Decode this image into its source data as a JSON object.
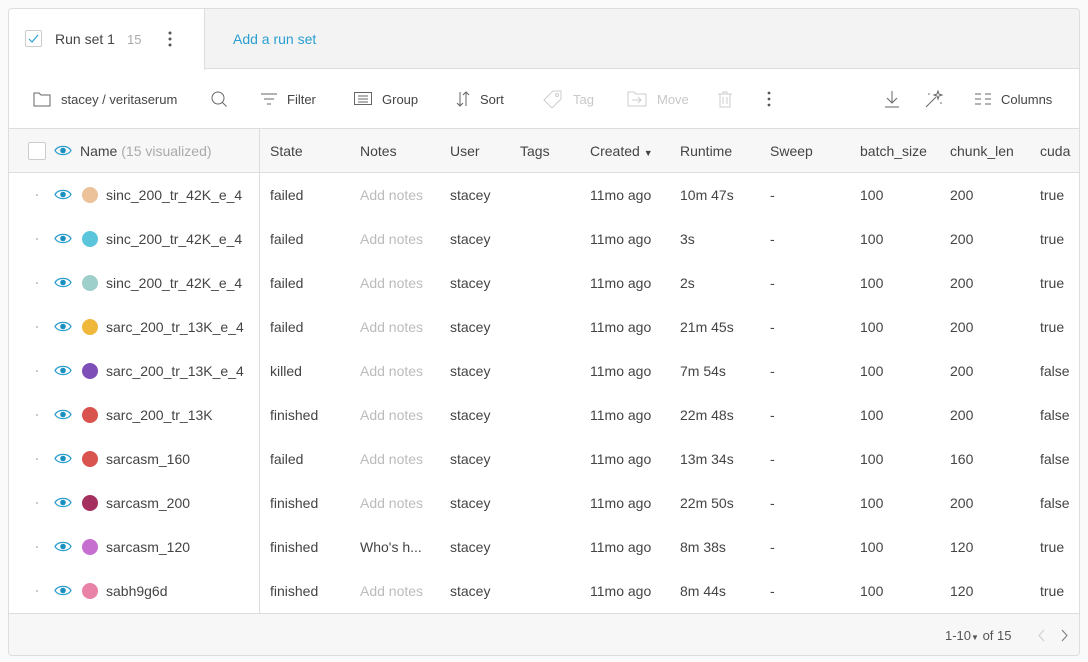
{
  "tabs": {
    "active": {
      "label": "Run set 1",
      "count": "15",
      "checked": true
    },
    "add_label": "Add a run set"
  },
  "toolbar": {
    "project": "stacey / veritaserum",
    "filter": "Filter",
    "group": "Group",
    "sort": "Sort",
    "tag": "Tag",
    "move": "Move",
    "columns": "Columns"
  },
  "table": {
    "columns": {
      "name": "Name",
      "name_note": "(15 visualized)",
      "state": "State",
      "notes": "Notes",
      "user": "User",
      "tags": "Tags",
      "created": "Created",
      "runtime": "Runtime",
      "sweep": "Sweep",
      "batch_size": "batch_size",
      "chunk_len": "chunk_len",
      "cuda": "cuda"
    },
    "rows": [
      {
        "name": "sinc_200_tr_42K_e_4",
        "color": "#ecc29a",
        "state": "failed",
        "notes": "Add notes",
        "user": "stacey",
        "created": "11mo ago",
        "runtime": "10m 47s",
        "sweep": "-",
        "batch_size": "100",
        "chunk_len": "200",
        "cuda": "true"
      },
      {
        "name": "sinc_200_tr_42K_e_4",
        "color": "#5bc5dc",
        "state": "failed",
        "notes": "Add notes",
        "user": "stacey",
        "created": "11mo ago",
        "runtime": "3s",
        "sweep": "-",
        "batch_size": "100",
        "chunk_len": "200",
        "cuda": "true"
      },
      {
        "name": "sinc_200_tr_42K_e_4",
        "color": "#9fcfcb",
        "state": "failed",
        "notes": "Add notes",
        "user": "stacey",
        "created": "11mo ago",
        "runtime": "2s",
        "sweep": "-",
        "batch_size": "100",
        "chunk_len": "200",
        "cuda": "true"
      },
      {
        "name": "sarc_200_tr_13K_e_4",
        "color": "#f0b83a",
        "state": "failed",
        "notes": "Add notes",
        "user": "stacey",
        "created": "11mo ago",
        "runtime": "21m 45s",
        "sweep": "-",
        "batch_size": "100",
        "chunk_len": "200",
        "cuda": "true"
      },
      {
        "name": "sarc_200_tr_13K_e_4",
        "color": "#7f4fb8",
        "state": "killed",
        "notes": "Add notes",
        "user": "stacey",
        "created": "11mo ago",
        "runtime": "7m 54s",
        "sweep": "-",
        "batch_size": "100",
        "chunk_len": "200",
        "cuda": "false"
      },
      {
        "name": "sarc_200_tr_13K",
        "color": "#d9534f",
        "state": "finished",
        "notes": "Add notes",
        "user": "stacey",
        "created": "11mo ago",
        "runtime": "22m 48s",
        "sweep": "-",
        "batch_size": "100",
        "chunk_len": "200",
        "cuda": "false"
      },
      {
        "name": "sarcasm_160",
        "color": "#d9534f",
        "state": "failed",
        "notes": "Add notes",
        "user": "stacey",
        "created": "11mo ago",
        "runtime": "13m 34s",
        "sweep": "-",
        "batch_size": "100",
        "chunk_len": "160",
        "cuda": "false"
      },
      {
        "name": "sarcasm_200",
        "color": "#a3305f",
        "state": "finished",
        "notes": "Add notes",
        "user": "stacey",
        "created": "11mo ago",
        "runtime": "22m 50s",
        "sweep": "-",
        "batch_size": "100",
        "chunk_len": "200",
        "cuda": "false"
      },
      {
        "name": "sarcasm_120",
        "color": "#c76fd0",
        "state": "finished",
        "notes": "Who's h...",
        "user": "stacey",
        "created": "11mo ago",
        "runtime": "8m 38s",
        "sweep": "-",
        "batch_size": "100",
        "chunk_len": "120",
        "cuda": "true"
      },
      {
        "name": "sabh9g6d",
        "color": "#e882a6",
        "state": "finished",
        "notes": "Add notes",
        "user": "stacey",
        "created": "11mo ago",
        "runtime": "8m 44s",
        "sweep": "-",
        "batch_size": "100",
        "chunk_len": "120",
        "cuda": "true"
      }
    ]
  },
  "pagination": {
    "range": "1-10",
    "of": "of 15"
  },
  "colors": {
    "accent": "#2a9fd0",
    "eye": "#1a8fc0"
  }
}
